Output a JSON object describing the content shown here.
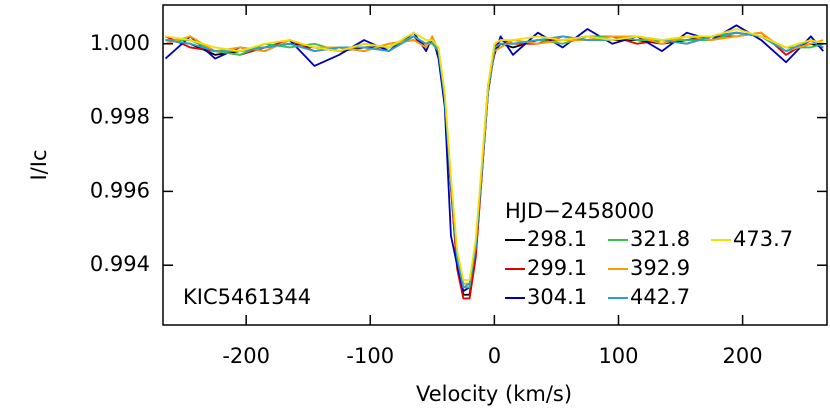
{
  "chart_data": {
    "type": "line",
    "x_label": "Velocity (km/s)",
    "y_label": "I/Ic",
    "annotation": "KIC5461344",
    "legend_title": "HJD−2458000",
    "xlim": [
      -267,
      268
    ],
    "ylim": [
      0.99238,
      1.00105
    ],
    "xticks": [
      -200,
      -100,
      0,
      100,
      200
    ],
    "yticks": [
      {
        "value": 1,
        "label": "1.000"
      },
      {
        "value": 0.998,
        "label": "0.998"
      },
      {
        "value": 0.996,
        "label": "0.996"
      },
      {
        "value": 0.994,
        "label": "0.994"
      }
    ],
    "x": [
      -265,
      -245,
      -225,
      -205,
      -185,
      -165,
      -145,
      -125,
      -105,
      -85,
      -65,
      -55,
      -50,
      -45,
      -40,
      -35,
      -30,
      -25,
      -20,
      -15,
      -10,
      -5,
      0,
      5,
      15,
      35,
      55,
      75,
      95,
      115,
      135,
      155,
      175,
      195,
      215,
      235,
      255,
      265
    ],
    "series": [
      {
        "name": "298.1",
        "color": "#000000",
        "values": [
          1.0001,
          1.0,
          0.9997,
          0.9998,
          0.9999,
          1.0,
          0.9999,
          0.9998,
          0.9999,
          0.9999,
          1.0002,
          0.9999,
          1.0001,
          0.9997,
          0.9984,
          0.9961,
          0.994,
          0.9932,
          0.9932,
          0.9943,
          0.9965,
          0.9987,
          0.9998,
          1.0,
          0.9999,
          1.0001,
          1.0001,
          1.0002,
          1.0001,
          1.0001,
          1.0,
          1.0001,
          1.0002,
          1.0003,
          1.0002,
          0.9998,
          1.0,
          0.9999
        ]
      },
      {
        "name": "299.1",
        "color": "#e00000",
        "values": [
          1.0002,
          0.9999,
          0.9998,
          0.9997,
          0.9999,
          1.0001,
          0.9998,
          0.9999,
          0.9998,
          1.0,
          1.0001,
          1.0,
          1.0001,
          0.9998,
          0.9985,
          0.9961,
          0.9939,
          0.9931,
          0.9931,
          0.9942,
          0.9965,
          0.9988,
          0.9999,
          1.0001,
          1.0,
          1.0,
          1.0002,
          1.0001,
          1.0002,
          1.0,
          1.0001,
          1.0,
          1.0002,
          1.0002,
          1.0003,
          0.9997,
          1.0001,
          1.0
        ]
      },
      {
        "name": "304.1",
        "color": "#0000b4",
        "values": [
          0.9996,
          1.0002,
          0.9996,
          0.9999,
          0.9998,
          1.0001,
          0.9994,
          0.9997,
          1.0001,
          0.9998,
          1.0003,
          0.9998,
          1.0002,
          0.9996,
          0.9983,
          0.9948,
          0.994,
          0.9933,
          0.9934,
          0.9945,
          0.9967,
          0.9989,
          0.9997,
          1.0002,
          0.9997,
          1.0003,
          0.9999,
          1.0004,
          1.0,
          1.0002,
          0.9998,
          1.0003,
          1.0001,
          1.0005,
          1.0001,
          0.9995,
          1.0002,
          0.9998
        ]
      },
      {
        "name": "321.8",
        "color": "#33c24a",
        "values": [
          1.0001,
          1.0001,
          0.9998,
          0.9997,
          1.0,
          0.9999,
          1.0,
          0.9998,
          1.0,
          0.9999,
          1.0002,
          1.0,
          1.0,
          0.9998,
          0.9986,
          0.9963,
          0.9942,
          0.9934,
          0.9934,
          0.9945,
          0.9967,
          0.9988,
          0.9999,
          1.0,
          1.0,
          1.0001,
          1.0,
          1.0002,
          1.0002,
          1.0001,
          1.0001,
          1.0001,
          1.0001,
          1.0003,
          1.0002,
          0.9999,
          0.9999,
          1.0
        ]
      },
      {
        "name": "392.9",
        "color": "#ff9a00",
        "values": [
          1.0,
          1.0002,
          0.9998,
          0.9999,
          0.9998,
          1.0001,
          0.9999,
          0.9999,
          0.9998,
          1.0,
          1.0001,
          0.9999,
          1.0002,
          0.9998,
          0.9986,
          0.9963,
          0.9943,
          0.9935,
          0.9935,
          0.9946,
          0.9967,
          0.9988,
          0.9998,
          0.9999,
          1.0001,
          1.0,
          1.0001,
          1.0001,
          1.0002,
          1.0002,
          1.0,
          1.0002,
          1.0001,
          1.0002,
          1.0003,
          0.9998,
          1.0,
          1.0001
        ]
      },
      {
        "name": "442.7",
        "color": "#2a9ed8",
        "values": [
          1.0001,
          1.0,
          0.9998,
          0.9998,
          0.9999,
          1.0,
          0.9998,
          0.9999,
          0.9999,
          0.9998,
          1.0002,
          1.0,
          1.0001,
          0.9998,
          0.9985,
          0.9962,
          0.9942,
          0.9934,
          0.9935,
          0.9945,
          0.9966,
          0.9988,
          0.9999,
          1.0,
          1.0,
          1.0001,
          1.0002,
          1.0001,
          1.0001,
          1.0002,
          1.0001,
          1.0,
          1.0002,
          1.0003,
          1.0002,
          0.9998,
          1.0001,
          0.9999
        ]
      },
      {
        "name": "473.7",
        "color": "#f2e000",
        "values": [
          1.0002,
          1.0001,
          0.9999,
          0.9998,
          1.0,
          1.0001,
          0.9999,
          0.9998,
          1.0,
          0.9999,
          1.0003,
          1.0001,
          1.0001,
          0.9999,
          0.9987,
          0.9964,
          0.9944,
          0.9936,
          0.9936,
          0.9947,
          0.9968,
          0.9989,
          1.0,
          1.0001,
          1.0001,
          1.0002,
          1.0001,
          1.0002,
          1.0001,
          1.0002,
          1.0001,
          1.0002,
          1.0002,
          1.0004,
          1.0002,
          0.9999,
          1.0001,
          1.0
        ]
      }
    ]
  }
}
